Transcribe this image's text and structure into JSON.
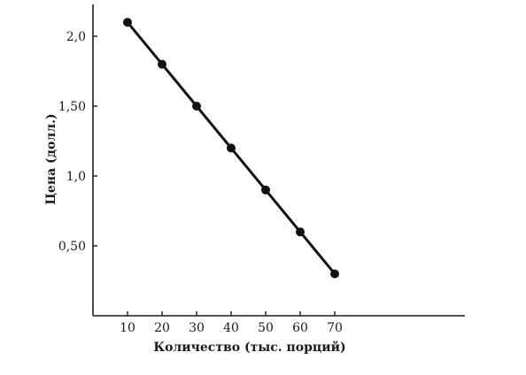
{
  "chart_data": {
    "type": "line",
    "xlabel": "Количество (тыс. порций)",
    "ylabel": "Цена (долл.)",
    "x_ticks": [
      {
        "value": 10,
        "label": "10"
      },
      {
        "value": 20,
        "label": "20"
      },
      {
        "value": 30,
        "label": "30"
      },
      {
        "value": 40,
        "label": "40"
      },
      {
        "value": 50,
        "label": "50"
      },
      {
        "value": 60,
        "label": "60"
      },
      {
        "value": 70,
        "label": "70"
      }
    ],
    "y_ticks": [
      {
        "value": 0.5,
        "label": "0,50"
      },
      {
        "value": 1.0,
        "label": "1,0"
      },
      {
        "value": 1.5,
        "label": "1,50"
      },
      {
        "value": 2.0,
        "label": "2,0"
      }
    ],
    "xlim": [
      0,
      107
    ],
    "ylim": [
      0,
      2.2
    ],
    "grid": false,
    "series": [
      {
        "x": [
          10,
          20,
          30,
          40,
          50,
          60,
          70
        ],
        "y": [
          2.1,
          1.8,
          1.5,
          1.2,
          0.9,
          0.6,
          0.3
        ],
        "color": "#111111"
      }
    ]
  }
}
